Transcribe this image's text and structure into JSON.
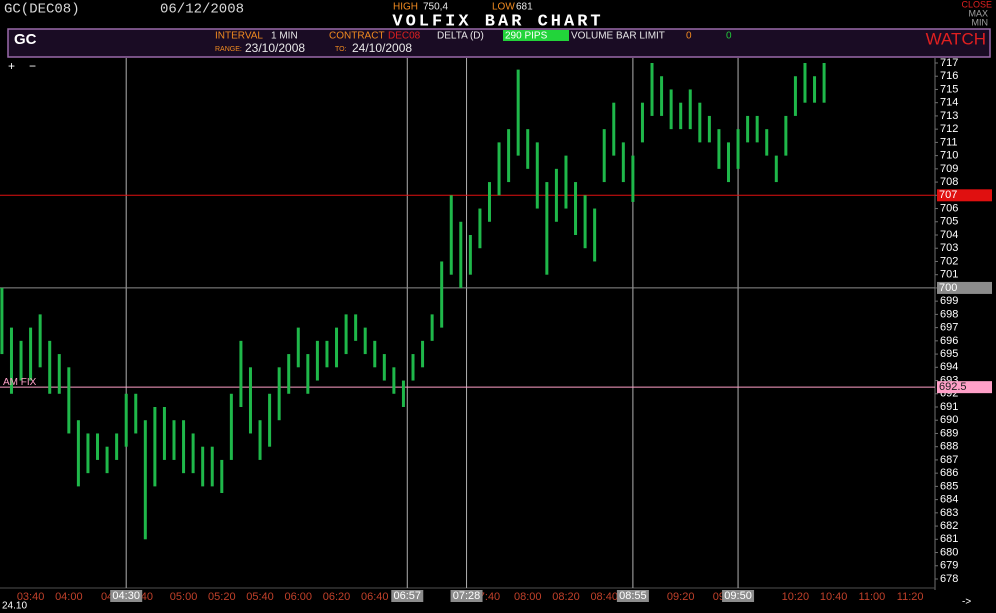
{
  "header": {
    "symbol": "GC(DEC08)",
    "date": "06/12/2008",
    "high_label": "HIGH",
    "high": "750,4",
    "low_label": "LOW",
    "low": "681",
    "title": "VOLFIX BAR CHART",
    "close": "CLOSE",
    "max": "MAX",
    "min": "MIN"
  },
  "panel": {
    "code": "GC",
    "interval_label": "INTERVAL",
    "interval": "1 MIN",
    "contract_label": "CONTRACT",
    "contract": "DEC08",
    "delta_label": "DELTA (D)",
    "delta": "290 PIPS",
    "volume_label": "VOLUME BAR LIMIT",
    "volume": "0",
    "volume2": "0",
    "watch": "WATCH",
    "range_label": "RANGE:",
    "range_from": "23/10/2008",
    "to_label": "TO:",
    "range_to": "24/10/2008"
  },
  "controls": {
    "plus": "+",
    "minus": "−",
    "date": "24.10",
    "arrow": "->"
  },
  "chart_data": {
    "type": "range-bar",
    "color": "#1fb84a",
    "x": [
      "03:25",
      "03:30",
      "03:35",
      "03:40",
      "03:45",
      "03:50",
      "03:55",
      "04:00",
      "04:05",
      "04:10",
      "04:15",
      "04:20",
      "04:25",
      "04:30",
      "04:35",
      "04:40",
      "04:45",
      "04:50",
      "04:55",
      "05:00",
      "05:05",
      "05:10",
      "05:15",
      "05:20",
      "05:25",
      "05:30",
      "05:35",
      "05:40",
      "05:45",
      "05:50",
      "05:55",
      "06:00",
      "06:05",
      "06:10",
      "06:15",
      "06:20",
      "06:25",
      "06:30",
      "06:35",
      "06:40",
      "06:45",
      "06:50",
      "06:55",
      "07:00",
      "07:05",
      "07:10",
      "07:15",
      "07:20",
      "07:25",
      "07:30",
      "07:35",
      "07:40",
      "07:45",
      "07:50",
      "07:55",
      "08:00",
      "08:05",
      "08:10",
      "08:15",
      "08:20",
      "08:25",
      "08:30",
      "08:35",
      "08:40",
      "08:45",
      "08:50",
      "08:55",
      "09:00",
      "09:05",
      "09:10",
      "09:15",
      "09:20",
      "09:25",
      "09:30",
      "09:35",
      "09:40",
      "09:45",
      "09:50",
      "09:55",
      "10:00",
      "10:05",
      "10:10",
      "10:15",
      "10:20",
      "10:25",
      "10:30",
      "10:35"
    ],
    "high": [
      700,
      697,
      696,
      697,
      698,
      696,
      695,
      694,
      690,
      689,
      689,
      688,
      689,
      692,
      692,
      690,
      691,
      691,
      690,
      690,
      689,
      688,
      688,
      687,
      692,
      696,
      694,
      690,
      692,
      694,
      695,
      697,
      695,
      696,
      696,
      697,
      698,
      698,
      697,
      696,
      695,
      694,
      693,
      695,
      696,
      698,
      702,
      707,
      705,
      704,
      706,
      708,
      711,
      712,
      716.5,
      712,
      711,
      708,
      709,
      710,
      708,
      707,
      706,
      712,
      714,
      711,
      710,
      714,
      717,
      716,
      715,
      714,
      715,
      714,
      713,
      712,
      711,
      712,
      713,
      713,
      712,
      710,
      713,
      716,
      717,
      716,
      717
    ],
    "low": [
      695,
      692,
      693,
      693,
      694,
      692,
      692,
      689,
      685,
      686,
      687,
      686,
      687,
      688,
      689,
      681,
      685,
      687,
      687,
      686,
      686,
      685,
      685,
      684.5,
      687,
      691,
      689,
      687,
      688,
      690,
      692,
      694,
      692,
      693,
      694,
      694,
      695,
      696,
      695,
      694,
      693,
      692,
      691,
      693,
      694,
      696,
      697,
      701,
      700,
      701,
      703,
      705,
      707,
      708,
      710,
      709,
      706,
      701,
      705,
      706,
      704,
      703,
      702,
      708,
      710,
      708,
      706.5,
      711,
      713,
      713,
      712,
      712,
      712,
      711,
      711,
      709,
      708,
      709,
      711,
      711,
      710,
      708,
      710,
      713,
      714,
      714,
      714
    ],
    "xlim": [
      "03:24",
      "11:33"
    ],
    "ylim": [
      678,
      717
    ],
    "yticks": [
      678,
      679,
      680,
      681,
      682,
      683,
      684,
      685,
      686,
      687,
      688,
      689,
      690,
      691,
      692,
      693,
      694,
      695,
      696,
      697,
      698,
      699,
      700,
      701,
      702,
      703,
      704,
      705,
      706,
      707,
      708,
      709,
      710,
      711,
      712,
      713,
      714,
      715,
      716,
      717
    ],
    "xticks": [
      "03:40",
      "04:00",
      {
        "value": "04:20",
        "label": "04"
      },
      {
        "value": "04:40",
        "label": ":40"
      },
      "05:00",
      "05:20",
      "05:40",
      "06:00",
      "06:20",
      "06:40",
      {
        "value": "07:00",
        "label": "07"
      },
      {
        "value": "07:40",
        "label": "7:40"
      },
      "08:00",
      "08:20",
      "08:40",
      {
        "value": "09:00",
        "label": "0"
      },
      "09:20",
      {
        "value": "09:40",
        "label": "09"
      },
      "10:20",
      "10:40",
      "11:00",
      "11:20"
    ],
    "markers": [
      "04:30",
      "06:57",
      "07:28",
      "08:55",
      "09:50"
    ],
    "levels": [
      {
        "value": 707,
        "color": "#e01010",
        "text_color": "#ffffff"
      },
      {
        "value": 700,
        "color": "#8c8c8c",
        "text_color": "#ffffff"
      },
      {
        "value": 692.5,
        "color": "#ffa0c8",
        "text_color": "#202020",
        "name": "AM FIX"
      }
    ]
  }
}
